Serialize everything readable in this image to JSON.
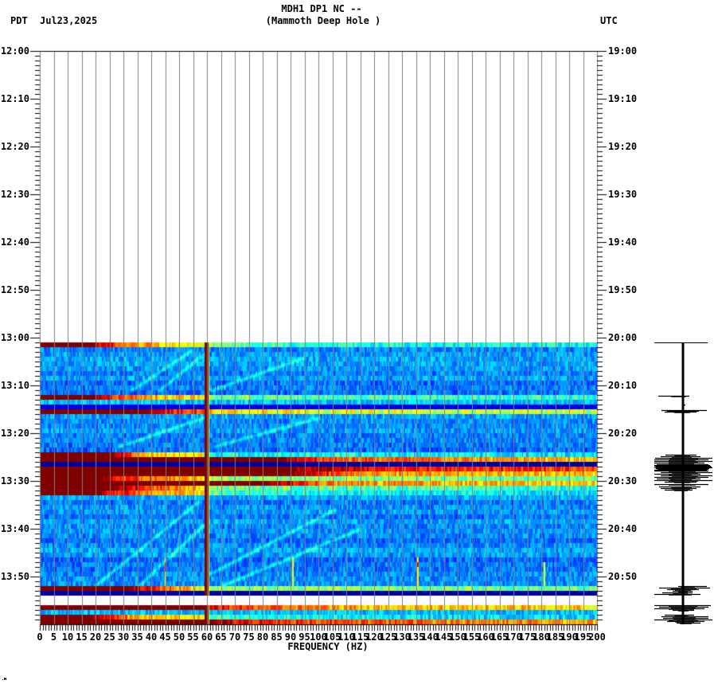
{
  "header": {
    "tz_left": "PDT",
    "date": "Jul23,2025",
    "title_line1": "MDH1 DP1 NC --",
    "title_line2": "(Mammoth Deep Hole )",
    "tz_right": "UTC"
  },
  "axes": {
    "left_labels": [
      "12:00",
      "12:10",
      "12:20",
      "12:30",
      "12:40",
      "12:50",
      "13:00",
      "13:10",
      "13:20",
      "13:30",
      "13:40",
      "13:50"
    ],
    "right_labels": [
      "19:00",
      "19:10",
      "19:20",
      "19:30",
      "19:40",
      "19:50",
      "20:00",
      "20:10",
      "20:20",
      "20:30",
      "20:40",
      "20:50"
    ],
    "freq_labels": [
      "0",
      "5",
      "10",
      "15",
      "20",
      "25",
      "30",
      "35",
      "40",
      "45",
      "50",
      "55",
      "60",
      "65",
      "70",
      "75",
      "80",
      "85",
      "90",
      "95",
      "100",
      "105",
      "110",
      "115",
      "120",
      "125",
      "130",
      "135",
      "140",
      "145",
      "150",
      "155",
      "160",
      "165",
      "170",
      "175",
      "180",
      "185",
      "190",
      "195",
      "200"
    ],
    "xlabel": "FREQUENCY (HZ)"
  },
  "colors": {
    "grid": "#808080",
    "axis": "#000000",
    "background": "#ffffff",
    "trace": "#000000"
  },
  "chart_data": {
    "type": "heatmap",
    "title": "MDH1 DP1 NC -- (Mammoth Deep Hole )",
    "xlabel": "FREQUENCY (HZ)",
    "ylabel_left": "PDT",
    "ylabel_right": "UTC",
    "date": "Jul23,2025",
    "xlim": [
      0,
      200
    ],
    "x_tick_step": 5,
    "x_minor_tick_step": 1,
    "ylim_pdt": [
      "12:00",
      "14:00"
    ],
    "ylim_utc": [
      "19:00",
      "21:00"
    ],
    "y_major_tick_minutes": 10,
    "y_minor_tick_minutes": 1,
    "grid": {
      "vertical_every_hz": 5,
      "horizontal": false
    },
    "spectrogram": {
      "colormap": "jet",
      "axis_start": "12:00",
      "data_start": "13:01",
      "data_end": "14:00",
      "row_minutes": 1,
      "background_level": 0.26,
      "noise": 0.07,
      "gaps": [
        "13:54",
        "13:55"
      ],
      "rows": [
        {
          "t": "13:01",
          "profile": [
            [
              0,
              1
            ],
            [
              18,
              1
            ],
            [
              24,
              0.88
            ],
            [
              32,
              0.78
            ],
            [
              42,
              0.68
            ],
            [
              55,
              0.58
            ],
            [
              70,
              0.48
            ],
            [
              100,
              0.41
            ],
            [
              200,
              0.38
            ]
          ]
        },
        {
          "t": "13:12",
          "profile": [
            [
              0,
              1
            ],
            [
              20,
              1
            ],
            [
              26,
              0.86
            ],
            [
              34,
              0.76
            ],
            [
              45,
              0.68
            ],
            [
              58,
              0.63
            ],
            [
              62,
              0.5
            ],
            [
              100,
              0.45
            ],
            [
              200,
              0.43
            ]
          ]
        },
        {
          "t": "13:13",
          "level": 0.32
        },
        {
          "t": "13:14",
          "level": 0.1
        },
        {
          "t": "13:15",
          "profile": [
            [
              0,
              1
            ],
            [
              38,
              1
            ],
            [
              48,
              0.86
            ],
            [
              58,
              0.8
            ],
            [
              62,
              0.68
            ],
            [
              100,
              0.6
            ],
            [
              200,
              0.56
            ]
          ]
        },
        {
          "t": "13:24",
          "profile": [
            [
              0,
              1
            ],
            [
              26,
              1
            ],
            [
              33,
              0.78
            ],
            [
              40,
              0.66
            ],
            [
              58,
              0.63
            ],
            [
              62,
              0.4
            ],
            [
              200,
              0.36
            ]
          ]
        },
        {
          "t": "13:25",
          "profile": [
            [
              0,
              1
            ],
            [
              85,
              1
            ],
            [
              105,
              0.8
            ],
            [
              200,
              0.68
            ]
          ]
        },
        {
          "t": "13:26",
          "level": 0.03
        },
        {
          "t": "13:27",
          "profile": [
            [
              0,
              1
            ],
            [
              90,
              1
            ],
            [
              130,
              0.86
            ],
            [
              200,
              0.82
            ]
          ]
        },
        {
          "t": "13:28",
          "profile": [
            [
              0,
              1
            ],
            [
              90,
              1
            ],
            [
              115,
              0.72
            ],
            [
              200,
              0.68
            ]
          ]
        },
        {
          "t": "13:29",
          "profile": [
            [
              0,
              1
            ],
            [
              22,
              1
            ],
            [
              30,
              0.84
            ],
            [
              45,
              0.72
            ],
            [
              58,
              0.68
            ],
            [
              62,
              0.52
            ],
            [
              200,
              0.48
            ]
          ]
        },
        {
          "t": "13:30",
          "profile": [
            [
              0,
              1
            ],
            [
              80,
              1
            ],
            [
              105,
              0.74
            ],
            [
              200,
              0.66
            ]
          ]
        },
        {
          "t": "13:31",
          "profile": [
            [
              0,
              1
            ],
            [
              28,
              1
            ],
            [
              38,
              0.82
            ],
            [
              55,
              0.7
            ],
            [
              62,
              0.48
            ],
            [
              200,
              0.4
            ]
          ]
        },
        {
          "t": "13:32",
          "profile": [
            [
              0,
              1
            ],
            [
              20,
              1
            ],
            [
              30,
              0.84
            ],
            [
              45,
              0.72
            ],
            [
              58,
              0.64
            ],
            [
              62,
              0.46
            ],
            [
              100,
              0.38
            ],
            [
              200,
              0.35
            ]
          ]
        },
        {
          "t": "13:52",
          "profile": [
            [
              0,
              1
            ],
            [
              32,
              1
            ],
            [
              40,
              0.84
            ],
            [
              52,
              0.72
            ],
            [
              58,
              0.62
            ],
            [
              62,
              0.52
            ],
            [
              200,
              0.48
            ]
          ]
        },
        {
          "t": "13:53",
          "level": 0.03
        },
        {
          "t": "13:56",
          "profile": [
            [
              0,
              1
            ],
            [
              58,
              1
            ],
            [
              62,
              0.88
            ],
            [
              75,
              0.8
            ],
            [
              120,
              0.7
            ],
            [
              200,
              0.66
            ]
          ]
        },
        {
          "t": "13:57",
          "level": 0.31
        },
        {
          "t": "13:58",
          "profile": [
            [
              0,
              1
            ],
            [
              18,
              1
            ],
            [
              26,
              0.84
            ],
            [
              36,
              0.68
            ],
            [
              58,
              0.64
            ],
            [
              62,
              0.42
            ],
            [
              120,
              0.36
            ],
            [
              200,
              0.34
            ]
          ]
        },
        {
          "t": "13:59",
          "profile": [
            [
              0,
              1
            ],
            [
              62,
              1
            ],
            [
              72,
              0.88
            ],
            [
              110,
              0.8
            ],
            [
              200,
              0.72
            ]
          ]
        }
      ],
      "tonal_lines": [
        {
          "hz": 59.6,
          "level": 1.0,
          "edge_level": 0.58
        }
      ],
      "short_signals": [
        {
          "hz": 45.1,
          "from": 46.0,
          "to": 52.0,
          "level": 0.62
        },
        {
          "hz": 90.6,
          "from": 46.0,
          "to": 52.0,
          "level": 0.6
        },
        {
          "hz": 135.7,
          "from": 46.0,
          "to": 53.0,
          "level": 0.64
        },
        {
          "hz": 135.7,
          "from": 56.5,
          "to": 59.0,
          "level": 0.6
        },
        {
          "hz": 180.9,
          "from": 47.0,
          "to": 52.0,
          "level": 0.6
        }
      ],
      "streaks": [
        {
          "from": [
            32.9,
            11.0
          ],
          "to": [
            54.3,
            2.7
          ]
        },
        {
          "from": [
            42.9,
            11.0
          ],
          "to": [
            58.6,
            3.5
          ]
        },
        {
          "from": [
            61.4,
            11.0
          ],
          "to": [
            94.3,
            4.3
          ]
        },
        {
          "from": [
            28.6,
            22.7
          ],
          "to": [
            58.6,
            16.8
          ]
        },
        {
          "from": [
            62.9,
            22.7
          ],
          "to": [
            100.0,
            16.8
          ]
        },
        {
          "from": [
            20.0,
            51.8
          ],
          "to": [
            57.1,
            34.3
          ]
        },
        {
          "from": [
            35.7,
            51.8
          ],
          "to": [
            58.6,
            39.3
          ]
        },
        {
          "from": [
            61.4,
            49.3
          ],
          "to": [
            105.7,
            36.0
          ]
        },
        {
          "from": [
            65.7,
            51.8
          ],
          "to": [
            114.3,
            40.2
          ]
        }
      ]
    },
    "seismogram": {
      "t0": "13:00",
      "trace": {
        "from": 1.0,
        "to": 60.0
      },
      "start_marker": {
        "t": 1.0,
        "left": -36,
        "right": 31
      },
      "bursts": [
        [
          12.17,
          -31,
          8
        ],
        [
          14.0,
          0,
          3
        ],
        [
          15.17,
          -27,
          30
        ],
        [
          15.33,
          -20,
          20
        ],
        [
          15.5,
          -23,
          17
        ],
        [
          24.5,
          -22,
          17
        ],
        [
          24.83,
          -28,
          22
        ],
        [
          25.17,
          -35,
          37
        ],
        [
          25.5,
          -36,
          32
        ],
        [
          25.83,
          -36,
          37
        ],
        [
          26.17,
          -36,
          27
        ],
        [
          26.5,
          -33,
          32
        ],
        [
          26.67,
          -36,
          34
        ],
        [
          26.83,
          -36,
          35
        ],
        [
          27.0,
          -34,
          36
        ],
        [
          27.17,
          -36,
          37
        ],
        [
          27.33,
          -34,
          33
        ],
        [
          27.5,
          -32,
          32
        ],
        [
          27.67,
          -36,
          30
        ],
        [
          27.83,
          -36,
          32
        ],
        [
          28.17,
          -28,
          37
        ],
        [
          28.5,
          -36,
          22
        ],
        [
          28.83,
          -28,
          37
        ],
        [
          29.17,
          -36,
          32
        ],
        [
          29.5,
          -33,
          22
        ],
        [
          29.83,
          -36,
          37
        ],
        [
          30.17,
          -23,
          17
        ],
        [
          30.67,
          -36,
          32
        ],
        [
          31.17,
          -30,
          22
        ],
        [
          31.5,
          -28,
          17
        ],
        [
          31.83,
          -23,
          12
        ],
        [
          52.0,
          -6,
          30
        ],
        [
          52.33,
          -30,
          34
        ],
        [
          52.67,
          -20,
          20
        ],
        [
          53.0,
          -13,
          12
        ],
        [
          53.33,
          -26,
          12
        ],
        [
          53.67,
          -36,
          22
        ],
        [
          56.0,
          -36,
          35
        ],
        [
          56.33,
          -30,
          32
        ],
        [
          56.67,
          -36,
          27
        ],
        [
          57.0,
          -13,
          14
        ],
        [
          58.0,
          -23,
          14
        ],
        [
          58.33,
          -27,
          32
        ],
        [
          58.67,
          -25,
          32
        ],
        [
          59.0,
          -36,
          37
        ],
        [
          59.33,
          -20,
          27
        ],
        [
          59.67,
          -8,
          22
        ]
      ]
    }
  }
}
